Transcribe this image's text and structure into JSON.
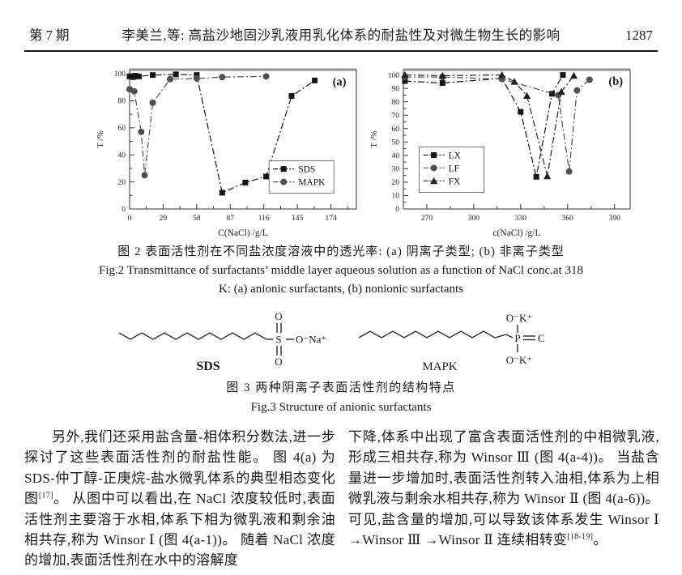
{
  "colors": {
    "ink": "#1a1a1a",
    "gray_series": "#4f4f4f",
    "spine_gray": "#8f8f8f"
  },
  "page_header": {
    "issue": "第 7 期",
    "title": "李美兰,等: 高盐沙地固沙乳液用乳化体系的耐盐性及对微生物生长的影响",
    "page_number": "1287"
  },
  "fig2_caption": {
    "zh": "图 2  表面活性剂在不同盐浓度溶液中的透光率: (a) 阴离子类型; (b) 非离子类型",
    "en_line1": "Fig.2  Transmittance of surfactants’ middle layer aqueous solution as a function of NaCl conc.at 318",
    "en_line2": "K: (a) anionic surfactants, (b) nonionic surfactants"
  },
  "fig3_caption": {
    "zh": "图 3  两种阴离子表面活性剂的结构特点",
    "en": "Fig.3  Structure of anionic surfactants"
  },
  "structures": {
    "sds": {
      "label": "SDS",
      "atom_top": "O",
      "atom_bottom": "O",
      "atom_center": "S",
      "atom_right": "O⁻Na⁺"
    },
    "mapk": {
      "label": "MAPK",
      "atom_top": "O⁻K⁺",
      "atom_bottom": "O⁻K⁺",
      "atom_center": "P",
      "atom_right": "C"
    }
  },
  "body_text": {
    "left_column": {
      "indent": true,
      "segments": [
        {
          "text": "另外,我们还采用盐含量-相体积分数法,进一步探讨了这些表面活性剂的耐盐性能。 图 4(a) 为 SDS-仲丁醇-正庚烷-盐水微乳体系的典型相态变化图"
        },
        {
          "text": "[17]",
          "sup": true
        },
        {
          "text": "。 从图中可以看出,在 NaCl 浓度较低时,表面活性剂主要溶于水相,体系下相为微乳液和剩余油相共存,称为 Winsor Ⅰ (图 4(a-1))。 随着 NaCl 浓度的增加,表面活性剂在水中的溶解度"
        }
      ]
    },
    "right_column": {
      "indent": false,
      "segments": [
        {
          "text": "下降,体系中出现了富含表面活性剂的中相微乳液,形成三相共存,称为 Winsor Ⅲ (图 4(a-4))。 当盐含量进一步增加时,表面活性剂转入油相,体系为上相微乳液与剩余水相共存,称为 Winsor Ⅱ (图 4(a-6))。 可见,盐含量的增加,可以导致该体系发生 Winsor Ⅰ →Winsor Ⅲ →Winsor Ⅱ 连续相转变"
        },
        {
          "text": "[18-19]",
          "sup": true
        },
        {
          "text": "。"
        }
      ]
    }
  },
  "chart_data": [
    {
      "type": "line",
      "annotation": "(a)",
      "xlabel": "C(NaCl) /g/L",
      "ylabel": "T /%",
      "xlim": [
        0,
        196
      ],
      "ylim": [
        0,
        103
      ],
      "xticks": [
        0,
        29,
        58,
        87,
        116,
        145,
        174
      ],
      "yticks": [
        0,
        20,
        40,
        60,
        80,
        100
      ],
      "grid": false,
      "legend": {
        "fx": 0.615,
        "fy": 0.655
      },
      "annotation_pos": {
        "fx": 0.895,
        "fy": 0.045
      },
      "series": [
        {
          "name": "SDS",
          "marker": "square",
          "color": "#161616",
          "points": [
            [
              0,
              98
            ],
            [
              3,
              97.5
            ],
            [
              5,
              98.5
            ],
            [
              8,
              98
            ],
            [
              20,
              99
            ],
            [
              40,
              99.5
            ],
            [
              58,
              99
            ],
            [
              80,
              12
            ],
            [
              100,
              19.5
            ],
            [
              118,
              24
            ],
            [
              140,
              83.5
            ],
            [
              160,
              95
            ]
          ]
        },
        {
          "name": "MAPK",
          "marker": "circle",
          "color": "#4f4f4f",
          "points": [
            [
              0,
              88.5
            ],
            [
              4,
              87
            ],
            [
              10,
              57
            ],
            [
              13,
              25
            ],
            [
              20,
              78.5
            ],
            [
              35,
              96
            ],
            [
              58,
              96.5
            ],
            [
              80,
              97.5
            ],
            [
              118,
              98
            ]
          ]
        }
      ]
    },
    {
      "type": "line",
      "annotation": "(b)",
      "xlabel": "c(NaCl) /g/L",
      "ylabel": "T /%",
      "xlim": [
        255,
        400
      ],
      "ylim": [
        0,
        104
      ],
      "xticks": [
        270,
        300,
        330,
        360,
        390
      ],
      "yticks": [
        0,
        10,
        20,
        30,
        40,
        50,
        60,
        70,
        80,
        90,
        100
      ],
      "grid": false,
      "legend": {
        "fx": 0.07,
        "fy": 0.555
      },
      "annotation_pos": {
        "fx": 0.905,
        "fy": 0.04
      },
      "series": [
        {
          "name": "LX",
          "marker": "square",
          "color": "#161616",
          "points": [
            [
              256,
              95.5
            ],
            [
              280,
              94
            ],
            [
              318,
              97.5
            ],
            [
              330,
              72.5
            ],
            [
              340,
              24
            ],
            [
              350,
              86
            ],
            [
              357,
              100
            ]
          ]
        },
        {
          "name": "LF",
          "marker": "circle",
          "color": "#4f4f4f",
          "points": [
            [
              256,
              98.5
            ],
            [
              280,
              98.5
            ],
            [
              318,
              97
            ],
            [
              354,
              85
            ],
            [
              361,
              28
            ],
            [
              366,
              88.5
            ],
            [
              374,
              96.5
            ]
          ]
        },
        {
          "name": "FX",
          "marker": "triangle",
          "color": "#222222",
          "points": [
            [
              256,
              100
            ],
            [
              280,
              99.5
            ],
            [
              318,
              100
            ],
            [
              326,
              95
            ],
            [
              334,
              84.5
            ],
            [
              347,
              24.5
            ],
            [
              356,
              87.5
            ],
            [
              364,
              99.5
            ]
          ]
        }
      ]
    }
  ]
}
